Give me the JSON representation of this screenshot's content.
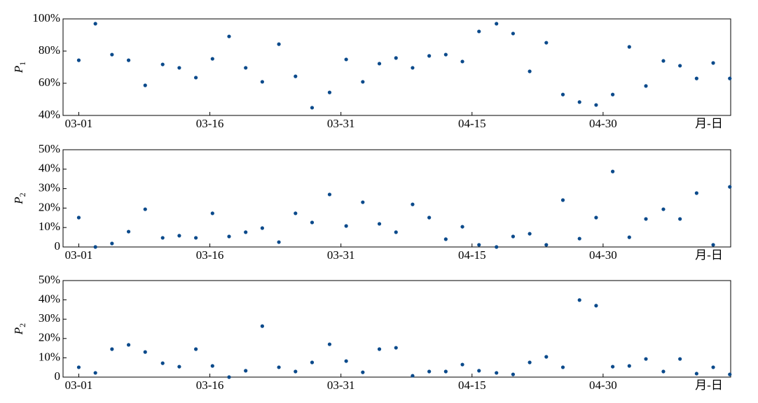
{
  "chart_data": [
    {
      "type": "scatter",
      "ylabel": {
        "base": "P",
        "sub": "1"
      },
      "xlabel": "月-日",
      "color": "#0b4a8b",
      "x": [
        0,
        1.9,
        3.8,
        5.7,
        7.6,
        9.6,
        11.5,
        13.4,
        15.3,
        17.2,
        19.1,
        21.0,
        22.9,
        24.8,
        26.7,
        28.7,
        30.6,
        32.5,
        34.4,
        36.3,
        38.2,
        40.1,
        42.0,
        43.9,
        45.8,
        47.8,
        49.7,
        51.6,
        53.5,
        55.4,
        57.3,
        59.2,
        61.1,
        63.0,
        64.9,
        66.9,
        68.8,
        70.7,
        72.6,
        74.5
      ],
      "values": [
        74.3,
        97,
        77.8,
        74.3,
        58.7,
        71.7,
        69.6,
        63.5,
        75.2,
        89.1,
        69.6,
        60.9,
        84.3,
        64.3,
        44.8,
        54.3,
        74.8,
        60.9,
        72.2,
        75.7,
        69.6,
        77,
        77.8,
        73.5,
        92.2,
        97,
        90.9,
        67.4,
        85.2,
        53,
        48.3,
        46.5,
        53,
        82.6,
        58.3,
        73.9,
        70.9,
        63,
        72.6,
        63
      ],
      "xlim": [
        -1.8,
        74.6
      ],
      "xticks": [
        {
          "value": 0,
          "label": "03-01"
        },
        {
          "value": 15,
          "label": "03-16"
        },
        {
          "value": 30,
          "label": "03-31"
        },
        {
          "value": 45,
          "label": "04-15"
        },
        {
          "value": 60,
          "label": "04-30"
        }
      ],
      "ylim": [
        40,
        100
      ],
      "yticks": [
        {
          "value": 40,
          "label": "40%"
        },
        {
          "value": 60,
          "label": "60%"
        },
        {
          "value": 80,
          "label": "80%"
        },
        {
          "value": 100,
          "label": "100%"
        }
      ]
    },
    {
      "type": "scatter",
      "ylabel": {
        "base": "P",
        "sub": "2"
      },
      "xlabel": "月-日",
      "color": "#0b4a8b",
      "x": [
        0,
        1.9,
        3.8,
        5.7,
        7.6,
        9.6,
        11.5,
        13.4,
        15.3,
        17.2,
        19.1,
        21.0,
        22.9,
        24.8,
        26.7,
        28.7,
        30.6,
        32.5,
        34.4,
        36.3,
        38.2,
        40.1,
        42.0,
        43.9,
        45.8,
        47.8,
        49.7,
        51.6,
        53.5,
        55.4,
        57.3,
        59.2,
        61.1,
        63.0,
        64.9,
        66.9,
        68.8,
        70.7,
        72.6,
        74.5
      ],
      "values": [
        15.1,
        0,
        1.8,
        7.9,
        19.4,
        4.7,
        5.8,
        4.7,
        17.3,
        5.4,
        7.6,
        9.7,
        2.5,
        17.3,
        12.6,
        27,
        10.8,
        23,
        11.9,
        7.6,
        21.9,
        15.1,
        4,
        10.4,
        1.1,
        0,
        5.4,
        6.8,
        1.1,
        24.1,
        4.3,
        15.1,
        38.8,
        5,
        14.4,
        19.4,
        14.4,
        27.7,
        1.1,
        30.9
      ],
      "xlim": [
        -1.8,
        74.6
      ],
      "xticks": [
        {
          "value": 0,
          "label": "03-01"
        },
        {
          "value": 15,
          "label": "03-16"
        },
        {
          "value": 30,
          "label": "03-31"
        },
        {
          "value": 45,
          "label": "04-15"
        },
        {
          "value": 60,
          "label": "04-30"
        }
      ],
      "ylim": [
        0,
        50
      ],
      "yticks": [
        0,
        {
          "value": 10,
          "label": "10%"
        },
        {
          "value": 20,
          "label": "20%"
        },
        {
          "value": 30,
          "label": "30%"
        },
        {
          "value": 40,
          "label": "40%"
        },
        {
          "value": 50,
          "label": "50%"
        }
      ]
    },
    {
      "type": "scatter",
      "ylabel": {
        "base": "P",
        "sub": "2"
      },
      "xlabel": "月-日",
      "color": "#0b4a8b",
      "x": [
        0,
        1.9,
        3.8,
        5.7,
        7.6,
        9.6,
        11.5,
        13.4,
        15.3,
        17.2,
        19.1,
        21.0,
        22.9,
        24.8,
        26.7,
        28.7,
        30.6,
        32.5,
        34.4,
        36.3,
        38.2,
        40.1,
        42.0,
        43.9,
        45.8,
        47.8,
        49.7,
        51.6,
        53.5,
        55.4,
        57.3,
        59.2,
        61.1,
        63.0,
        64.9,
        66.9,
        68.8,
        70.7,
        72.6,
        74.5
      ],
      "values": [
        5.1,
        2.2,
        14.5,
        16.7,
        13,
        7.2,
        5.4,
        14.5,
        5.8,
        0,
        3.3,
        26.4,
        5.1,
        2.9,
        7.6,
        17,
        8.3,
        2.5,
        14.5,
        15.2,
        0.7,
        2.9,
        2.9,
        6.5,
        3.3,
        2.2,
        1.4,
        7.6,
        10.5,
        5.1,
        39.9,
        37,
        5.4,
        5.8,
        9.4,
        2.9,
        9.4,
        1.8,
        5.1,
        1.4
      ],
      "xlim": [
        -1.8,
        74.6
      ],
      "xticks": [
        {
          "value": 0,
          "label": "03-01"
        },
        {
          "value": 15,
          "label": "03-16"
        },
        {
          "value": 30,
          "label": "03-31"
        },
        {
          "value": 45,
          "label": "04-15"
        },
        {
          "value": 60,
          "label": "04-30"
        }
      ],
      "ylim": [
        0,
        50
      ],
      "yticks": [
        0,
        {
          "value": 10,
          "label": "10%"
        },
        {
          "value": 20,
          "label": "20%"
        },
        {
          "value": 30,
          "label": "30%"
        },
        {
          "value": 40,
          "label": "40%"
        },
        {
          "value": 50,
          "label": "50%"
        }
      ]
    }
  ]
}
